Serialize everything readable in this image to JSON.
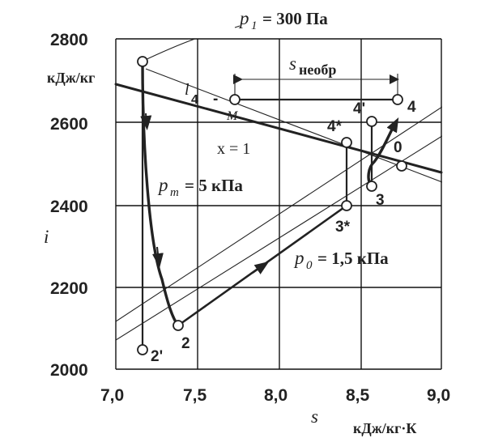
{
  "x_ticks": [
    "7,0",
    "7,5",
    "8,0",
    "8,5",
    "9,0"
  ],
  "y_ticks": [
    "2800",
    "2600",
    "2400",
    "2200",
    "2000"
  ],
  "x_axis": {
    "symbol": "s",
    "unit": "кДж/кг·К"
  },
  "y_axis": {
    "symbol": "i",
    "unit": "кДж/кг"
  },
  "isobars": {
    "p1": {
      "symbol": "p",
      "sub": "1",
      "value": "= 300 Па"
    },
    "pm": {
      "symbol": "p",
      "sub": "m",
      "value": "= 5 кПа"
    },
    "p0": {
      "symbol": "p",
      "sub": "0",
      "value": "= 1,5 кПа"
    }
  },
  "x_line": "x = 1",
  "entropy_label": {
    "symbol": "s",
    "sub": "необр"
  },
  "l4_label": {
    "symbol": "l",
    "sub": "4",
    "suffix": "-",
    "point": "M"
  },
  "points": {
    "p2": "2",
    "p2prime": "2'",
    "p3": "3",
    "p3star": "3*",
    "p4": "4",
    "p4star": "4*",
    "p4prime": "4'",
    "p0": "0"
  },
  "chart_data": {
    "type": "line",
    "xlim": [
      7.0,
      9.0
    ],
    "ylim": [
      2000,
      2800
    ],
    "grid": true,
    "x_ticks": [
      7.0,
      7.5,
      8.0,
      8.5,
      9.0
    ],
    "y_ticks": [
      2000,
      2200,
      2400,
      2600,
      2800
    ],
    "state_points": [
      {
        "name": "1",
        "s": 7.15,
        "i": 2750
      },
      {
        "name": "2",
        "s": 7.38,
        "i": 2105
      },
      {
        "name": "2'",
        "s": 7.15,
        "i": 2045
      },
      {
        "name": "3",
        "s": 8.56,
        "i": 2440
      },
      {
        "name": "3*",
        "s": 8.39,
        "i": 2400
      },
      {
        "name": "4",
        "s": 8.73,
        "i": 2655
      },
      {
        "name": "4*",
        "s": 8.39,
        "i": 2545
      },
      {
        "name": "4'",
        "s": 8.56,
        "i": 2600
      },
      {
        "name": "M",
        "s": 7.73,
        "i": 2655
      },
      {
        "name": "0",
        "s": 8.75,
        "i": 2490
      }
    ]
  }
}
